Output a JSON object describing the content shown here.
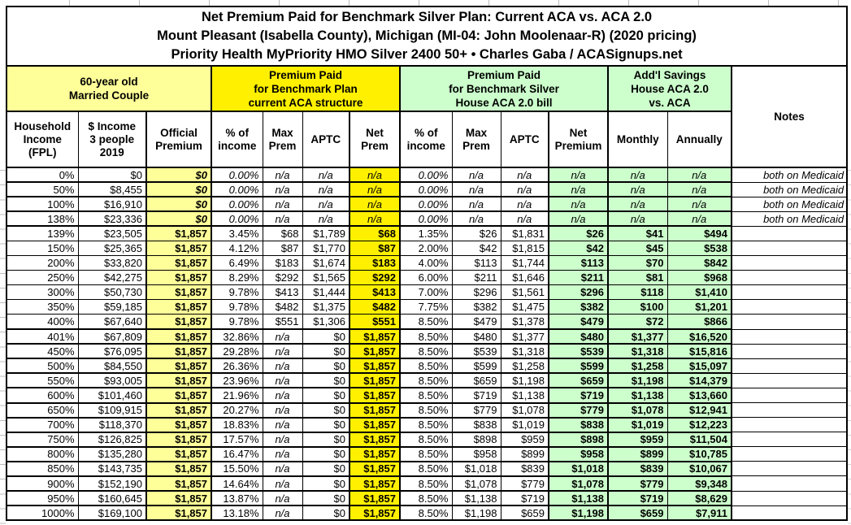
{
  "title": {
    "line1": "Net Premium Paid for Benchmark Silver Plan: Current ACA vs. ACA 2.0",
    "line2": "Mount Pleasant (Isabella County), Michigan (MI-04: John Moolenaar-R) (2020 pricing)",
    "line3": "Priority Health MyPriority HMO Silver 2400 50+ • Charles Gaba / ACASignups.net"
  },
  "groups": {
    "household": "60-year old\nMarried Couple",
    "current_aca": "Premium Paid\nfor Benchmark Plan\ncurrent ACA structure",
    "aca20": "Premium Paid\nfor Benchmark Silver\nHouse ACA 2.0 bill",
    "savings": "Add'l Savings\nHouse ACA 2.0\nvs. ACA",
    "notes": "Notes"
  },
  "columns": [
    "Household\nIncome\n(FPL)",
    "$ Income\n3 people\n2019",
    "Official\nPremium",
    "% of\nincome",
    "Max\nPrem",
    "APTC",
    "Net\nPrem",
    "% of\nincome",
    "Max\nPrem",
    "APTC",
    "Net\nPremium",
    "Monthly",
    "Annually"
  ],
  "colors": {
    "light_yellow": "#FFFF99",
    "yellow": "#FFF000",
    "light_green": "#CCFFCC",
    "border": "#000000"
  },
  "rows": [
    [
      "0%",
      "$0",
      "$0",
      "0.00%",
      "n/a",
      "n/a",
      "n/a",
      "0.00%",
      "n/a",
      "n/a",
      "n/a",
      "n/a",
      "n/a",
      "both on Medicaid"
    ],
    [
      "50%",
      "$8,455",
      "$0",
      "0.00%",
      "n/a",
      "n/a",
      "n/a",
      "0.00%",
      "n/a",
      "n/a",
      "n/a",
      "n/a",
      "n/a",
      "both on Medicaid"
    ],
    [
      "100%",
      "$16,910",
      "$0",
      "0.00%",
      "n/a",
      "n/a",
      "n/a",
      "0.00%",
      "n/a",
      "n/a",
      "n/a",
      "n/a",
      "n/a",
      "both on Medicaid"
    ],
    [
      "138%",
      "$23,336",
      "$0",
      "0.00%",
      "n/a",
      "n/a",
      "n/a",
      "0.00%",
      "n/a",
      "n/a",
      "n/a",
      "n/a",
      "n/a",
      "both on Medicaid"
    ],
    [
      "139%",
      "$23,505",
      "$1,857",
      "3.45%",
      "$68",
      "$1,789",
      "$68",
      "1.35%",
      "$26",
      "$1,831",
      "$26",
      "$41",
      "$494",
      ""
    ],
    [
      "150%",
      "$25,365",
      "$1,857",
      "4.12%",
      "$87",
      "$1,770",
      "$87",
      "2.00%",
      "$42",
      "$1,815",
      "$42",
      "$45",
      "$538",
      ""
    ],
    [
      "200%",
      "$33,820",
      "$1,857",
      "6.49%",
      "$183",
      "$1,674",
      "$183",
      "4.00%",
      "$113",
      "$1,744",
      "$113",
      "$70",
      "$842",
      ""
    ],
    [
      "250%",
      "$42,275",
      "$1,857",
      "8.29%",
      "$292",
      "$1,565",
      "$292",
      "6.00%",
      "$211",
      "$1,646",
      "$211",
      "$81",
      "$968",
      ""
    ],
    [
      "300%",
      "$50,730",
      "$1,857",
      "9.78%",
      "$413",
      "$1,444",
      "$413",
      "7.00%",
      "$296",
      "$1,561",
      "$296",
      "$118",
      "$1,410",
      ""
    ],
    [
      "350%",
      "$59,185",
      "$1,857",
      "9.78%",
      "$482",
      "$1,375",
      "$482",
      "7.75%",
      "$382",
      "$1,475",
      "$382",
      "$100",
      "$1,201",
      ""
    ],
    [
      "400%",
      "$67,640",
      "$1,857",
      "9.78%",
      "$551",
      "$1,306",
      "$551",
      "8.50%",
      "$479",
      "$1,378",
      "$479",
      "$72",
      "$866",
      ""
    ],
    [
      "401%",
      "$67,809",
      "$1,857",
      "32.86%",
      "n/a",
      "$0",
      "$1,857",
      "8.50%",
      "$480",
      "$1,377",
      "$480",
      "$1,377",
      "$16,520",
      ""
    ],
    [
      "450%",
      "$76,095",
      "$1,857",
      "29.28%",
      "n/a",
      "$0",
      "$1,857",
      "8.50%",
      "$539",
      "$1,318",
      "$539",
      "$1,318",
      "$15,816",
      ""
    ],
    [
      "500%",
      "$84,550",
      "$1,857",
      "26.36%",
      "n/a",
      "$0",
      "$1,857",
      "8.50%",
      "$599",
      "$1,258",
      "$599",
      "$1,258",
      "$15,097",
      ""
    ],
    [
      "550%",
      "$93,005",
      "$1,857",
      "23.96%",
      "n/a",
      "$0",
      "$1,857",
      "8.50%",
      "$659",
      "$1,198",
      "$659",
      "$1,198",
      "$14,379",
      ""
    ],
    [
      "600%",
      "$101,460",
      "$1,857",
      "21.96%",
      "n/a",
      "$0",
      "$1,857",
      "8.50%",
      "$719",
      "$1,138",
      "$719",
      "$1,138",
      "$13,660",
      ""
    ],
    [
      "650%",
      "$109,915",
      "$1,857",
      "20.27%",
      "n/a",
      "$0",
      "$1,857",
      "8.50%",
      "$779",
      "$1,078",
      "$779",
      "$1,078",
      "$12,941",
      ""
    ],
    [
      "700%",
      "$118,370",
      "$1,857",
      "18.83%",
      "n/a",
      "$0",
      "$1,857",
      "8.50%",
      "$838",
      "$1,019",
      "$838",
      "$1,019",
      "$12,223",
      ""
    ],
    [
      "750%",
      "$126,825",
      "$1,857",
      "17.57%",
      "n/a",
      "$0",
      "$1,857",
      "8.50%",
      "$898",
      "$959",
      "$898",
      "$959",
      "$11,504",
      ""
    ],
    [
      "800%",
      "$135,280",
      "$1,857",
      "16.47%",
      "n/a",
      "$0",
      "$1,857",
      "8.50%",
      "$958",
      "$899",
      "$958",
      "$899",
      "$10,785",
      ""
    ],
    [
      "850%",
      "$143,735",
      "$1,857",
      "15.50%",
      "n/a",
      "$0",
      "$1,857",
      "8.50%",
      "$1,018",
      "$839",
      "$1,018",
      "$839",
      "$10,067",
      ""
    ],
    [
      "900%",
      "$152,190",
      "$1,857",
      "14.64%",
      "n/a",
      "$0",
      "$1,857",
      "8.50%",
      "$1,078",
      "$779",
      "$1,078",
      "$779",
      "$9,348",
      ""
    ],
    [
      "950%",
      "$160,645",
      "$1,857",
      "13.87%",
      "n/a",
      "$0",
      "$1,857",
      "8.50%",
      "$1,138",
      "$719",
      "$1,138",
      "$719",
      "$8,629",
      ""
    ],
    [
      "1000%",
      "$169,100",
      "$1,857",
      "13.18%",
      "n/a",
      "$0",
      "$1,857",
      "8.50%",
      "$1,198",
      "$659",
      "$1,198",
      "$659",
      "$7,911",
      ""
    ]
  ]
}
